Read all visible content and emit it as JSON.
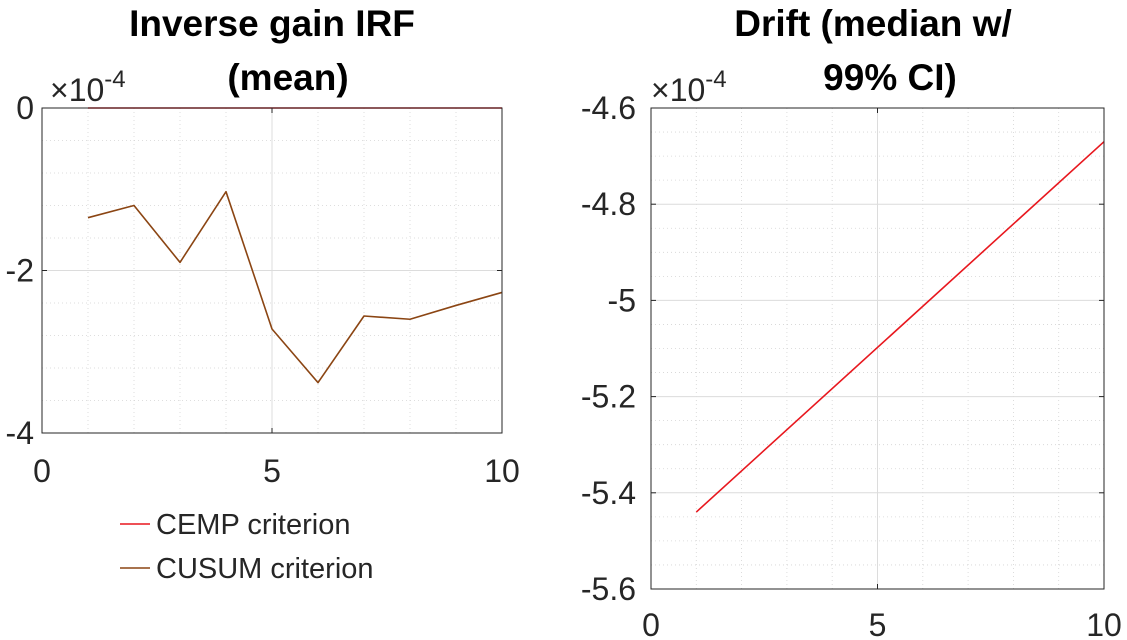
{
  "chart_data": [
    {
      "type": "line",
      "title": [
        "Inverse gain IRF",
        "(mean)"
      ],
      "xlabel": "",
      "ylabel": "",
      "xlim": [
        0,
        10
      ],
      "ylim": [
        -0.0004,
        0
      ],
      "x_ticks": [
        0,
        5,
        10
      ],
      "x_tick_labels": [
        "0",
        "5",
        "10"
      ],
      "y_ticks": [
        0,
        -0.0002,
        -0.0004
      ],
      "y_tick_labels": [
        "0",
        "-2",
        "-4"
      ],
      "y_multiplier": "10",
      "y_multiplier_prefix": "×",
      "y_multiplier_exponent": "-4",
      "grid": true,
      "minor_grid": true,
      "series": [
        {
          "name": "CEMP criterion",
          "color": "#e8171e",
          "x": [
            1,
            2,
            3,
            4,
            5,
            6,
            7,
            8,
            9,
            10
          ],
          "y": [
            0,
            0,
            0,
            0,
            0,
            0,
            0,
            0,
            0,
            0
          ]
        },
        {
          "name": "CUSUM criterion",
          "color": "#8b4513",
          "x": [
            1,
            2,
            3,
            4,
            5,
            6,
            7,
            8,
            9,
            10
          ],
          "y": [
            -0.000135,
            -0.00012,
            -0.00019,
            -0.000103,
            -0.000272,
            -0.000338,
            -0.000256,
            -0.00026,
            -0.000243,
            -0.000227
          ]
        }
      ],
      "legend_placement": "below"
    },
    {
      "type": "line",
      "title": [
        "Drift (median w/",
        "99% CI)"
      ],
      "xlabel": "",
      "ylabel": "",
      "xlim": [
        0,
        10
      ],
      "ylim": [
        -0.00056,
        -0.00046
      ],
      "x_ticks": [
        0,
        5,
        10
      ],
      "x_tick_labels": [
        "0",
        "5",
        "10"
      ],
      "y_ticks": [
        -0.00046,
        -0.00048,
        -0.0005,
        -0.00052,
        -0.00054,
        -0.00056
      ],
      "y_tick_labels": [
        "-4.6",
        "-4.8",
        "-5",
        "-5.2",
        "-5.4",
        "-5.6"
      ],
      "y_multiplier": "10",
      "y_multiplier_prefix": "×",
      "y_multiplier_exponent": "-4",
      "grid": true,
      "minor_grid": true,
      "series": [
        {
          "color": "#e8171e",
          "x": [
            1,
            10
          ],
          "y": [
            -0.000544,
            -0.000467
          ]
        }
      ]
    }
  ]
}
